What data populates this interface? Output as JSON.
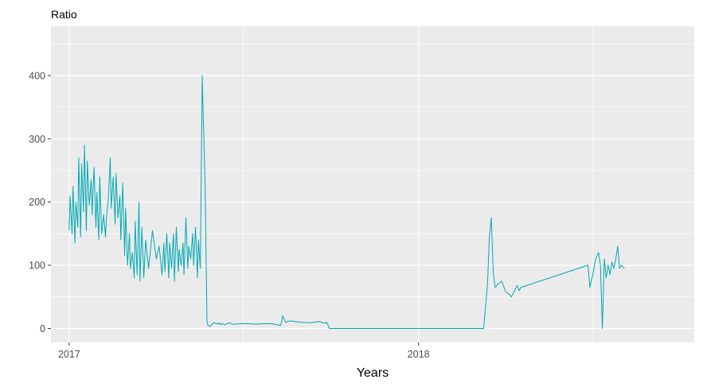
{
  "chart_data": {
    "type": "line",
    "title": "Ratio",
    "xlabel": "Years",
    "ylabel": "",
    "x_tick_labels": [
      "2017",
      "2018"
    ],
    "y_ticks": [
      0,
      100,
      200,
      300,
      400
    ],
    "ylim": [
      -22,
      478
    ],
    "xlim": [
      "2016-12-13",
      "2018-10-16"
    ],
    "grid": true,
    "line_color": "#00A9B4",
    "panel_color": "#EBEBEB",
    "series": [
      {
        "x": [
          "2017-01-01",
          "2017-01-02",
          "2017-01-04",
          "2017-01-05",
          "2017-01-07",
          "2017-01-08",
          "2017-01-10",
          "2017-01-11",
          "2017-01-13",
          "2017-01-14",
          "2017-01-16",
          "2017-01-17",
          "2017-01-19",
          "2017-01-20",
          "2017-01-22",
          "2017-01-24",
          "2017-01-25",
          "2017-01-27",
          "2017-01-29",
          "2017-01-30",
          "2017-02-01",
          "2017-02-02",
          "2017-02-04",
          "2017-02-06",
          "2017-02-08",
          "2017-02-09",
          "2017-02-11",
          "2017-02-13",
          "2017-02-14",
          "2017-02-16",
          "2017-02-18",
          "2017-02-19",
          "2017-02-21",
          "2017-02-23",
          "2017-02-24",
          "2017-02-26",
          "2017-02-28",
          "2017-03-01",
          "2017-03-03",
          "2017-03-05",
          "2017-03-06",
          "2017-03-08",
          "2017-03-10",
          "2017-03-11",
          "2017-03-13",
          "2017-03-15",
          "2017-03-16",
          "2017-03-18",
          "2017-03-20",
          "2017-03-22",
          "2017-03-25",
          "2017-03-29",
          "2017-04-02",
          "2017-04-05",
          "2017-04-08",
          "2017-04-10",
          "2017-04-11",
          "2017-04-13",
          "2017-04-15",
          "2017-04-16",
          "2017-04-18",
          "2017-04-20",
          "2017-04-21",
          "2017-04-23",
          "2017-04-25",
          "2017-04-26",
          "2017-04-28",
          "2017-04-30",
          "2017-05-01",
          "2017-05-03",
          "2017-05-05",
          "2017-05-06",
          "2017-05-08",
          "2017-05-10",
          "2017-05-11",
          "2017-05-13",
          "2017-05-15",
          "2017-05-16",
          "2017-05-18",
          "2017-05-20",
          "2017-05-21",
          "2017-05-23",
          "2017-05-25",
          "2017-05-26",
          "2017-05-28",
          "2017-05-30",
          "2017-05-31",
          "2017-06-02",
          "2017-06-03",
          "2017-06-05",
          "2017-06-07",
          "2017-06-08",
          "2017-06-10",
          "2017-06-12",
          "2017-06-14",
          "2017-06-16",
          "2017-06-18",
          "2017-06-20",
          "2017-06-24",
          "2017-07-01",
          "2017-07-15",
          "2017-07-30",
          "2017-08-10",
          "2017-08-12",
          "2017-08-15",
          "2017-08-20",
          "2017-08-30",
          "2017-09-10",
          "2017-09-20",
          "2017-09-25",
          "2017-09-27",
          "2017-09-30",
          "2018-03-10",
          "2018-03-14",
          "2018-03-16",
          "2018-03-18",
          "2018-03-20",
          "2018-03-22",
          "2018-03-25",
          "2018-03-29",
          "2018-04-02",
          "2018-04-05",
          "2018-04-08",
          "2018-04-14",
          "2018-04-16",
          "2018-04-18",
          "2018-06-27",
          "2018-06-29",
          "2018-07-02",
          "2018-07-05",
          "2018-07-08",
          "2018-07-10",
          "2018-07-12",
          "2018-07-14",
          "2018-07-16",
          "2018-07-18",
          "2018-07-20",
          "2018-07-22",
          "2018-07-24",
          "2018-07-26",
          "2018-07-28",
          "2018-07-30",
          "2018-08-01",
          "2018-08-04"
        ],
        "y": [
          155,
          210,
          150,
          225,
          135,
          200,
          160,
          270,
          145,
          260,
          185,
          290,
          155,
          265,
          195,
          235,
          180,
          255,
          160,
          215,
          140,
          240,
          150,
          180,
          145,
          175,
          205,
          270,
          190,
          240,
          165,
          245,
          175,
          210,
          140,
          230,
          115,
          190,
          100,
          150,
          95,
          120,
          80,
          170,
          85,
          200,
          75,
          160,
          80,
          140,
          95,
          155,
          110,
          130,
          85,
          135,
          90,
          150,
          80,
          135,
          95,
          150,
          75,
          160,
          90,
          125,
          100,
          135,
          85,
          175,
          95,
          130,
          110,
          150,
          100,
          160,
          80,
          140,
          95,
          400,
          340,
          230,
          10,
          5,
          3,
          6,
          8,
          9,
          8,
          7,
          9,
          6,
          8,
          6,
          7,
          8,
          9,
          7,
          7,
          8,
          7,
          8,
          5,
          20,
          10,
          12,
          10,
          9,
          11,
          8,
          10,
          0,
          0,
          70,
          145,
          175,
          90,
          65,
          70,
          75,
          58,
          55,
          50,
          68,
          60,
          65,
          100,
          65,
          85,
          110,
          120,
          100,
          0,
          110,
          80,
          100,
          85,
          105,
          95,
          110,
          130,
          95,
          100,
          95
        ]
      }
    ]
  }
}
